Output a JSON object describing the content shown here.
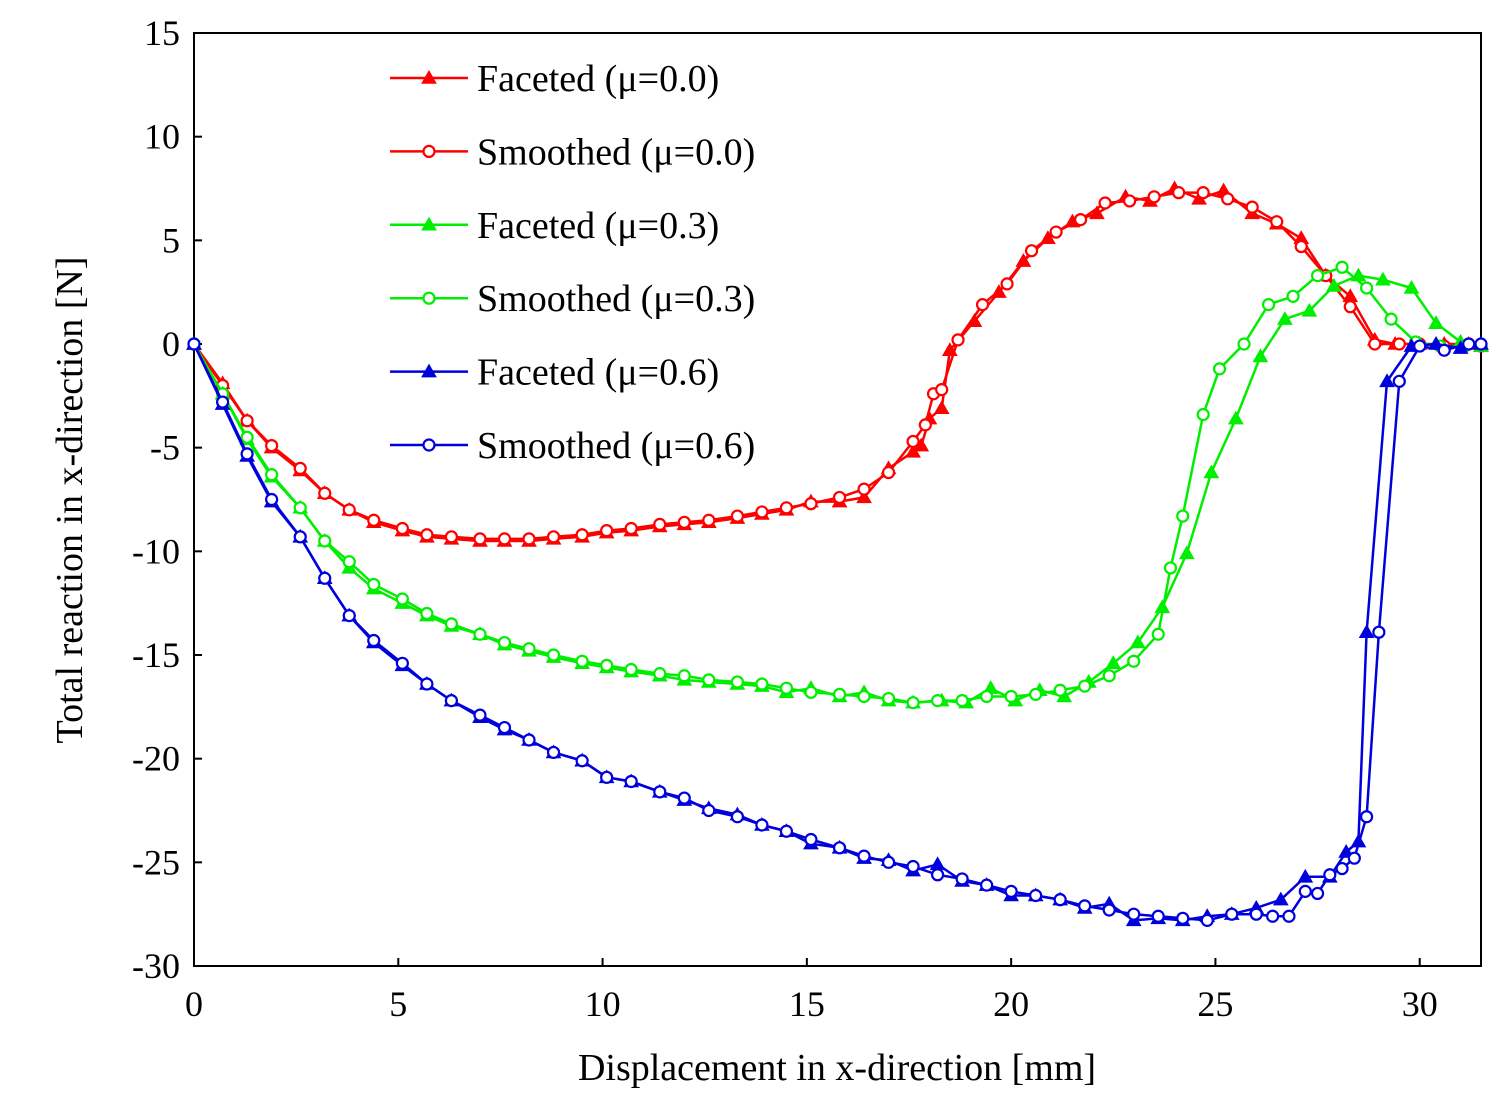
{
  "chart_data": {
    "type": "line",
    "xlabel": "Displacement in x-direction [mm]",
    "ylabel": "Total reaction in x-direction [N]",
    "xlim": [
      0,
      31.5
    ],
    "ylim": [
      -30,
      15
    ],
    "xticks": [
      0,
      5,
      10,
      15,
      20,
      25,
      30
    ],
    "yticks": [
      15,
      10,
      5,
      0,
      -5,
      -10,
      -15,
      -20,
      -25,
      -30
    ],
    "xtick_labels": [
      "0",
      "5",
      "10",
      "15",
      "20",
      "25",
      "30"
    ],
    "ytick_labels": [
      "15",
      "10",
      "5",
      "0",
      "-5",
      "-10",
      "-15",
      "-20",
      "-25",
      "-30"
    ],
    "grid": false,
    "legend_position": "top-left",
    "series": [
      {
        "name": "Faceted (μ=0.0)",
        "color": "#ff0000",
        "marker": "triangle",
        "x": [
          0,
          0.7,
          1.3,
          1.9,
          2.6,
          3.2,
          3.8,
          4.4,
          5.1,
          5.7,
          6.3,
          7.0,
          7.6,
          8.2,
          8.8,
          9.5,
          10.1,
          10.7,
          11.4,
          12.0,
          12.6,
          13.3,
          13.9,
          14.5,
          15.1,
          15.8,
          16.4,
          17.0,
          17.6,
          17.8,
          18.0,
          18.3,
          18.5,
          19.1,
          19.7,
          20.3,
          20.9,
          21.5,
          22.1,
          22.8,
          23.4,
          24.0,
          24.6,
          25.2,
          25.9,
          26.5,
          27.1,
          27.7,
          28.3,
          28.9,
          29.4,
          30.0,
          30.6,
          31.2,
          31.5
        ],
        "y": [
          0,
          -1.9,
          -3.7,
          -5.0,
          -6.1,
          -7.2,
          -8.0,
          -8.6,
          -9.0,
          -9.3,
          -9.4,
          -9.5,
          -9.5,
          -9.5,
          -9.4,
          -9.3,
          -9.1,
          -9.0,
          -8.8,
          -8.7,
          -8.6,
          -8.4,
          -8.2,
          -8.0,
          -7.6,
          -7.6,
          -7.4,
          -6.0,
          -5.2,
          -4.9,
          -3.6,
          -3.1,
          -0.3,
          1.1,
          2.5,
          4.0,
          5.1,
          5.9,
          6.3,
          7.1,
          6.9,
          7.5,
          7.0,
          7.4,
          6.3,
          5.8,
          5.1,
          3.3,
          2.3,
          0.2,
          0.0,
          0.0,
          0.0,
          0.0,
          -0.1
        ]
      },
      {
        "name": "Smoothed (μ=0.0)",
        "color": "#ff0000",
        "marker": "circle",
        "x": [
          0,
          0.7,
          1.3,
          1.9,
          2.6,
          3.2,
          3.8,
          4.4,
          5.1,
          5.7,
          6.3,
          7.0,
          7.6,
          8.2,
          8.8,
          9.5,
          10.1,
          10.7,
          11.4,
          12.0,
          12.6,
          13.3,
          13.9,
          14.5,
          15.1,
          15.8,
          16.4,
          17.0,
          17.6,
          17.9,
          18.1,
          18.3,
          18.7,
          19.3,
          19.9,
          20.5,
          21.1,
          21.7,
          22.3,
          22.9,
          23.5,
          24.1,
          24.7,
          25.3,
          25.9,
          26.5,
          27.1,
          27.7,
          28.3,
          28.9,
          29.5,
          30.0,
          30.6,
          31.2,
          31.5
        ],
        "y": [
          0,
          -2.0,
          -3.7,
          -4.9,
          -6.0,
          -7.2,
          -8.0,
          -8.5,
          -8.9,
          -9.2,
          -9.3,
          -9.4,
          -9.4,
          -9.4,
          -9.3,
          -9.2,
          -9.0,
          -8.9,
          -8.7,
          -8.6,
          -8.5,
          -8.3,
          -8.1,
          -7.9,
          -7.7,
          -7.4,
          -7.0,
          -6.2,
          -4.7,
          -3.9,
          -2.4,
          -2.2,
          0.2,
          1.9,
          2.9,
          4.5,
          5.4,
          6.0,
          6.8,
          6.9,
          7.1,
          7.3,
          7.3,
          7.0,
          6.6,
          5.9,
          4.7,
          3.3,
          1.8,
          0.0,
          0.0,
          0.0,
          -0.1,
          0.0,
          -0.1
        ]
      },
      {
        "name": "Faceted (μ=0.3)",
        "color": "#00ee00",
        "marker": "triangle",
        "x": [
          0,
          0.7,
          1.3,
          1.9,
          2.6,
          3.2,
          3.8,
          4.4,
          5.1,
          5.7,
          6.3,
          7.0,
          7.6,
          8.2,
          8.8,
          9.5,
          10.1,
          10.7,
          11.4,
          12.0,
          12.6,
          13.3,
          13.9,
          14.5,
          15.1,
          15.8,
          16.4,
          17.0,
          17.6,
          18.3,
          18.9,
          19.5,
          20.1,
          20.7,
          21.3,
          21.9,
          22.5,
          23.1,
          23.7,
          24.3,
          24.9,
          25.5,
          26.1,
          26.7,
          27.3,
          27.9,
          28.5,
          29.1,
          29.8,
          30.4,
          31.0,
          31.5
        ],
        "y": [
          0,
          -2.4,
          -4.6,
          -6.4,
          -7.9,
          -9.5,
          -10.8,
          -11.8,
          -12.5,
          -13.1,
          -13.6,
          -14.0,
          -14.5,
          -14.8,
          -15.1,
          -15.4,
          -15.6,
          -15.8,
          -16.0,
          -16.2,
          -16.3,
          -16.4,
          -16.5,
          -16.8,
          -16.6,
          -17.0,
          -16.8,
          -17.2,
          -17.3,
          -17.2,
          -17.3,
          -16.6,
          -17.2,
          -16.7,
          -17.0,
          -16.3,
          -15.4,
          -14.4,
          -12.7,
          -10.1,
          -6.2,
          -3.6,
          -0.6,
          1.2,
          1.6,
          2.8,
          3.3,
          3.1,
          2.7,
          1.0,
          0.1,
          -0.1
        ]
      },
      {
        "name": "Smoothed (μ=0.3)",
        "color": "#00ee00",
        "marker": "circle",
        "x": [
          0,
          0.7,
          1.3,
          1.9,
          2.6,
          3.2,
          3.8,
          4.4,
          5.1,
          5.7,
          6.3,
          7.0,
          7.6,
          8.2,
          8.8,
          9.5,
          10.1,
          10.7,
          11.4,
          12.0,
          12.6,
          13.3,
          13.9,
          14.5,
          15.1,
          15.8,
          16.4,
          17.0,
          17.6,
          18.2,
          18.8,
          19.4,
          20.0,
          20.6,
          21.2,
          21.8,
          22.4,
          23.0,
          23.6,
          23.9,
          24.2,
          24.7,
          25.1,
          25.7,
          26.3,
          26.9,
          27.5,
          28.1,
          28.7,
          29.3,
          29.9,
          30.5,
          31.1
        ],
        "y": [
          0,
          -2.4,
          -4.5,
          -6.3,
          -7.9,
          -9.5,
          -10.5,
          -11.6,
          -12.3,
          -13.0,
          -13.5,
          -14.0,
          -14.4,
          -14.7,
          -15.0,
          -15.3,
          -15.5,
          -15.7,
          -15.9,
          -16.0,
          -16.2,
          -16.3,
          -16.4,
          -16.6,
          -16.8,
          -16.9,
          -17.0,
          -17.1,
          -17.3,
          -17.2,
          -17.2,
          -17.0,
          -17.0,
          -16.9,
          -16.7,
          -16.5,
          -16.0,
          -15.3,
          -14.0,
          -10.8,
          -8.3,
          -3.4,
          -1.2,
          0.0,
          1.9,
          2.3,
          3.3,
          3.7,
          2.7,
          1.2,
          0.1,
          -0.1,
          -0.1
        ]
      },
      {
        "name": "Faceted (μ=0.6)",
        "color": "#0000dd",
        "marker": "triangle",
        "x": [
          0,
          0.7,
          1.3,
          1.9,
          2.6,
          3.2,
          3.8,
          4.4,
          5.1,
          5.7,
          6.3,
          7.0,
          7.6,
          8.2,
          8.8,
          9.5,
          10.1,
          10.7,
          11.4,
          12.0,
          12.6,
          13.3,
          13.9,
          14.5,
          15.1,
          15.8,
          16.4,
          17.0,
          17.6,
          18.2,
          18.8,
          19.4,
          20.0,
          20.6,
          21.2,
          21.8,
          22.4,
          23.0,
          23.6,
          24.2,
          24.8,
          25.4,
          26.0,
          26.6,
          27.2,
          27.8,
          28.2,
          28.5,
          28.7,
          29.2,
          29.8,
          30.4,
          31.0,
          31.5
        ],
        "y": [
          0,
          -2.9,
          -5.4,
          -7.6,
          -9.3,
          -11.3,
          -13.1,
          -14.4,
          -15.5,
          -16.4,
          -17.2,
          -18.0,
          -18.6,
          -19.1,
          -19.7,
          -20.1,
          -20.9,
          -21.1,
          -21.6,
          -22.0,
          -22.4,
          -22.7,
          -23.2,
          -23.5,
          -24.1,
          -24.3,
          -24.8,
          -24.9,
          -25.4,
          -25.1,
          -25.9,
          -26.1,
          -26.6,
          -26.6,
          -26.8,
          -27.2,
          -27.0,
          -27.8,
          -27.7,
          -27.8,
          -27.6,
          -27.5,
          -27.2,
          -26.8,
          -25.7,
          -25.7,
          -24.5,
          -24.0,
          -13.9,
          -1.8,
          -0.1,
          0.0,
          -0.2,
          0.0
        ]
      },
      {
        "name": "Smoothed (μ=0.6)",
        "color": "#0000dd",
        "marker": "circle",
        "x": [
          0,
          0.7,
          1.3,
          1.9,
          2.6,
          3.2,
          3.8,
          4.4,
          5.1,
          5.7,
          6.3,
          7.0,
          7.6,
          8.2,
          8.8,
          9.5,
          10.1,
          10.7,
          11.4,
          12.0,
          12.6,
          13.3,
          13.9,
          14.5,
          15.1,
          15.8,
          16.4,
          17.0,
          17.6,
          18.2,
          18.8,
          19.4,
          20.0,
          20.6,
          21.2,
          21.8,
          22.4,
          23.0,
          23.6,
          24.2,
          24.8,
          25.4,
          26.0,
          26.4,
          26.8,
          27.2,
          27.5,
          27.8,
          28.1,
          28.4,
          28.7,
          29.0,
          29.5,
          30.0,
          30.6,
          31.2,
          31.5
        ],
        "y": [
          0,
          -2.8,
          -5.3,
          -7.5,
          -9.3,
          -11.3,
          -13.1,
          -14.3,
          -15.4,
          -16.4,
          -17.2,
          -17.9,
          -18.5,
          -19.1,
          -19.7,
          -20.1,
          -20.9,
          -21.1,
          -21.6,
          -21.9,
          -22.5,
          -22.8,
          -23.2,
          -23.5,
          -23.9,
          -24.3,
          -24.7,
          -25.0,
          -25.2,
          -25.6,
          -25.8,
          -26.1,
          -26.4,
          -26.6,
          -26.8,
          -27.1,
          -27.3,
          -27.5,
          -27.6,
          -27.7,
          -27.8,
          -27.5,
          -27.5,
          -27.6,
          -27.6,
          -26.4,
          -26.5,
          -25.6,
          -25.3,
          -24.8,
          -22.8,
          -13.9,
          -1.8,
          -0.1,
          -0.3,
          0.0,
          0.0
        ]
      }
    ]
  }
}
